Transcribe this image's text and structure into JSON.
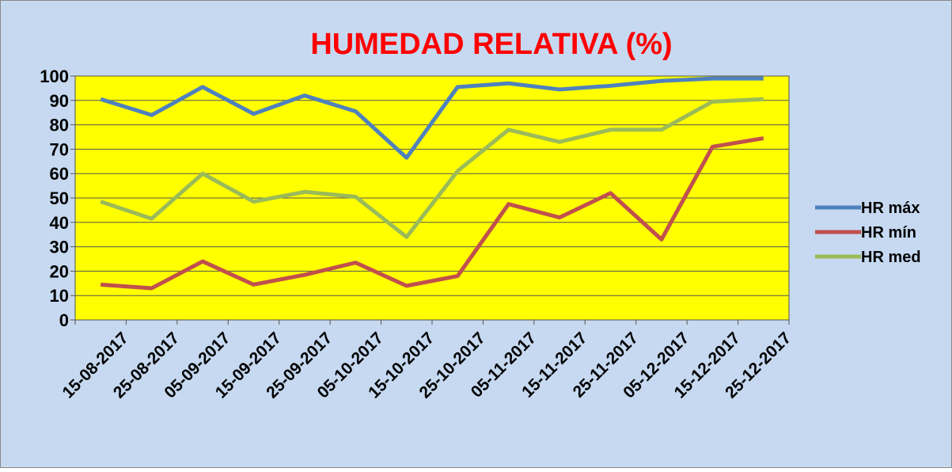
{
  "chart_data": {
    "type": "line",
    "title": "HUMEDAD RELATIVA  (%)",
    "categories": [
      "15-08-2017",
      "25-08-2017",
      "05-09-2017",
      "15-09-2017",
      "25-09-2017",
      "05-10-2017",
      "15-10-2017",
      "25-10-2017",
      "05-11-2017",
      "15-11-2017",
      "25-11-2017",
      "05-12-2017",
      "15-12-2017",
      "25-12-2017"
    ],
    "series": [
      {
        "name": "HR máx",
        "color": "#4f81bd",
        "values": [
          90.5,
          84,
          95.5,
          84.5,
          92,
          85.5,
          66.5,
          95.5,
          97,
          94.5,
          96,
          98,
          99,
          99
        ]
      },
      {
        "name": "HR mín",
        "color": "#c0504d",
        "values": [
          14.5,
          13,
          24,
          14.5,
          18.5,
          23.5,
          14,
          18,
          47.5,
          42,
          52,
          33,
          71,
          74.5
        ]
      },
      {
        "name": "HR med",
        "color": "#9bbb59",
        "values": [
          48.5,
          41.5,
          60,
          48.5,
          52.5,
          50.5,
          34,
          61,
          78,
          73,
          78,
          78,
          89.5,
          90.5
        ]
      }
    ],
    "ylim": [
      0,
      100
    ],
    "yticks": [
      0,
      10,
      20,
      30,
      40,
      50,
      60,
      70,
      80,
      90,
      100
    ],
    "grid": true,
    "legend": "right"
  }
}
